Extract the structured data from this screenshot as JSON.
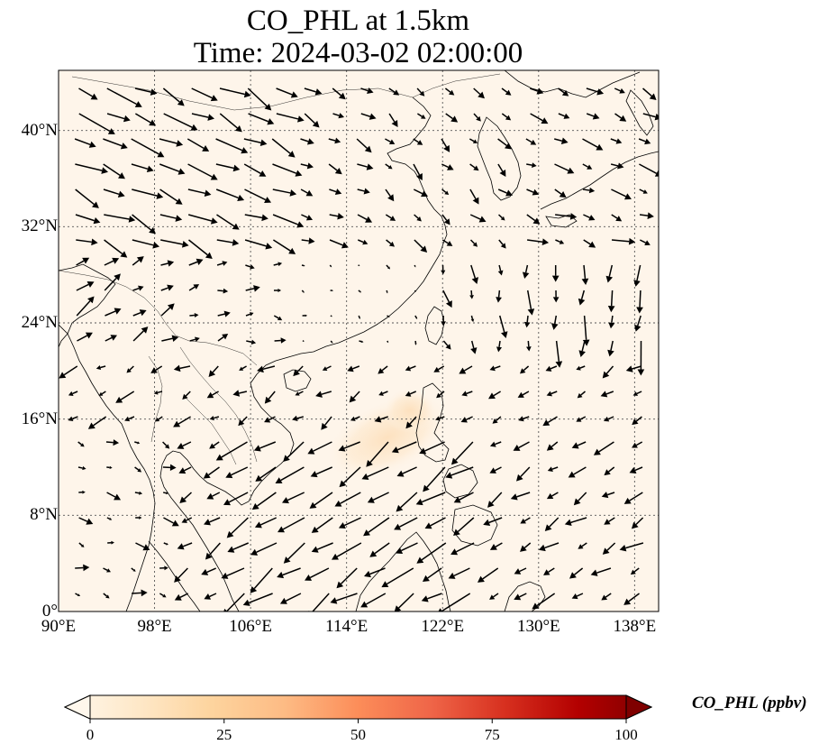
{
  "title": {
    "line1": "CO_PHL at 1.5km",
    "line2": "Time: 2024-03-02 02:00:00"
  },
  "map": {
    "lon_range": [
      90,
      140
    ],
    "lat_range": [
      0,
      45
    ],
    "lat_ticks": [
      {
        "value": 40,
        "label": "40°N"
      },
      {
        "value": 32,
        "label": "32°N"
      },
      {
        "value": 24,
        "label": "24°N"
      },
      {
        "value": 16,
        "label": "16°N"
      },
      {
        "value": 8,
        "label": "8°N"
      },
      {
        "value": 0,
        "label": "0°"
      }
    ],
    "lon_ticks": [
      {
        "value": 90,
        "label": "90°E"
      },
      {
        "value": 98,
        "label": "98°E"
      },
      {
        "value": 106,
        "label": "106°E"
      },
      {
        "value": 114,
        "label": "114°E"
      },
      {
        "value": 122,
        "label": "122°E"
      },
      {
        "value": 130,
        "label": "130°E"
      },
      {
        "value": 138,
        "label": "138°E"
      }
    ],
    "gridlines": true,
    "background_color": "#fef5ea",
    "plume_color": "#fde4c4",
    "plume_center": {
      "lon": 117.5,
      "lat": 14.5
    }
  },
  "colorbar": {
    "label": "CO_PHL (ppbv)",
    "min": 0,
    "max": 100,
    "ticks": [
      "0",
      "25",
      "50",
      "75",
      "100"
    ],
    "extend": "both",
    "colors": [
      "#fff7ec",
      "#fee8c8",
      "#fdd49e",
      "#fdbb84",
      "#fc8d59",
      "#ef6548",
      "#d7301f",
      "#b30000",
      "#7f0000"
    ]
  },
  "wind_field": {
    "description_units": "lon/lat degrees per arrow length",
    "regions": [
      {
        "name": "north-west",
        "u": 1.0,
        "v": -0.35
      },
      {
        "name": "south-china-sea",
        "u": -1.0,
        "v": -0.6
      }
    ]
  }
}
